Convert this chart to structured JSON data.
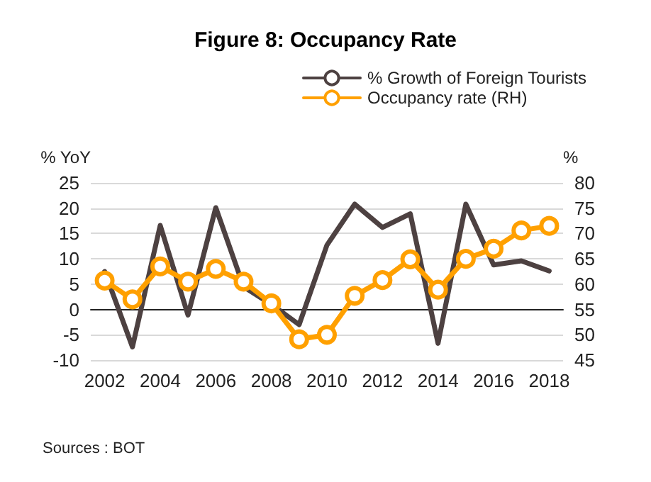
{
  "chart_data": {
    "type": "line",
    "title": "Figure 8: Occupancy Rate",
    "ylabel": "% YoY",
    "y2label": "%",
    "categories": [
      "2002",
      null,
      "2004",
      null,
      "2006",
      null,
      "2008",
      null,
      "2010",
      null,
      "2012",
      null,
      "2014",
      null,
      "2016",
      null,
      "2018"
    ],
    "series": [
      {
        "name": "% Growth of Foreign Tourists",
        "color": "#4d4141",
        "marker": "none",
        "values": [
          7.5,
          -7.4,
          16.6,
          -1.1,
          20.1,
          4.5,
          1,
          -3,
          12.7,
          20.8,
          16.2,
          18.9,
          -6.7,
          20.8,
          8.8,
          9.6,
          7.6
        ]
      },
      {
        "name": "Occupancy rate (RH)",
        "color": "#ffa000",
        "axis": "y2",
        "marker": "circle",
        "values": [
          60.7,
          57,
          63.5,
          60.5,
          63,
          60.5,
          56.2,
          49.1,
          50,
          57.7,
          60.8,
          64.9,
          58.9,
          65,
          67,
          70.6,
          71.5
        ]
      }
    ],
    "ylim": [
      -10,
      25
    ],
    "yticks": [
      -10,
      -5,
      0,
      5,
      10,
      15,
      20,
      25
    ],
    "y2lim": [
      45,
      80
    ],
    "y2ticks": [
      45,
      50,
      55,
      60,
      65,
      70,
      75,
      80
    ],
    "grid": "y",
    "legend": "top",
    "line_style": "solid",
    "annotations": [
      "Sources : BOT"
    ]
  }
}
